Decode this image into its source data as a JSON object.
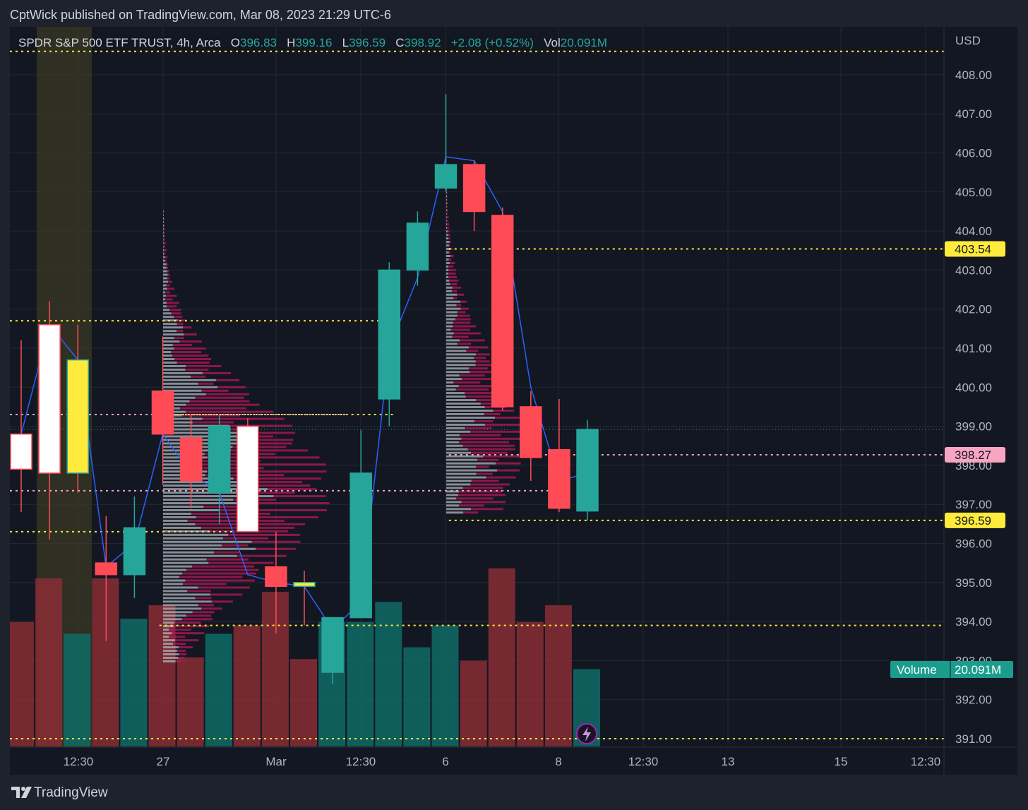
{
  "header": {
    "publisher_line": "CptWick published on TradingView.com, Mar 08, 2023 21:29 UTC-6"
  },
  "legend": {
    "symbol": "SPDR S&P 500 ETF TRUST, 4h, Arca",
    "o_label": "O",
    "o_value": "396.83",
    "h_label": "H",
    "h_value": "399.16",
    "l_label": "L",
    "l_value": "396.59",
    "c_label": "C",
    "c_value": "398.92",
    "change": "+2.08 (+0.52%)",
    "vol_label": "Vol",
    "vol_value": "20.091M"
  },
  "footer": {
    "brand": "TradingView",
    "logo_icon": "tradingview-logo-icon"
  },
  "colors": {
    "bull": "#26a69a",
    "bear": "#ff4b55",
    "level_yellow": "#ffeb3b",
    "level_pink": "#f8a5c2",
    "line_blue": "#2962ff",
    "bg": "#131722"
  },
  "chart_data": {
    "type": "candlestick",
    "currency": "USD",
    "y_ticks": [
      "408.00",
      "407.00",
      "406.00",
      "405.00",
      "404.00",
      "403.00",
      "402.00",
      "401.00",
      "400.00",
      "399.00",
      "398.00",
      "397.00",
      "396.00",
      "395.00",
      "394.00",
      "393.00",
      "392.00",
      "391.00"
    ],
    "ylim": [
      390.8,
      408.9
    ],
    "x_ticks": [
      "12:30",
      "27",
      "Mar",
      "12:30",
      "6",
      "8",
      "12:30",
      "13",
      "15",
      "12:30"
    ],
    "candles": [
      {
        "o": 397.9,
        "h": 401.2,
        "l": 396.8,
        "c": 398.8,
        "color": "white"
      },
      {
        "o": 397.8,
        "h": 402.2,
        "l": 396.1,
        "c": 401.6,
        "color": "white"
      },
      {
        "o": 397.8,
        "h": 401.6,
        "l": 397.3,
        "c": 400.7,
        "color": "yellow"
      },
      {
        "o": 395.2,
        "h": 396.7,
        "l": 393.5,
        "c": 395.5,
        "color": "bear"
      },
      {
        "o": 395.2,
        "h": 397.2,
        "l": 394.6,
        "c": 396.4,
        "color": "bull"
      },
      {
        "o": 399.9,
        "h": 401.3,
        "l": 397.5,
        "c": 398.8,
        "color": "bear"
      },
      {
        "o": 398.7,
        "h": 399.3,
        "l": 396.9,
        "c": 397.6,
        "color": "bear"
      },
      {
        "o": 397.3,
        "h": 399.3,
        "l": 396.5,
        "c": 399.0,
        "color": "bull"
      },
      {
        "o": 399.0,
        "h": 399.2,
        "l": 396.3,
        "c": 396.3,
        "color": "white"
      },
      {
        "o": 395.4,
        "h": 396.3,
        "l": 393.7,
        "c": 394.9,
        "color": "bear"
      },
      {
        "o": 395.0,
        "h": 395.3,
        "l": 393.9,
        "c": 394.9,
        "color": "yellow"
      },
      {
        "o": 392.7,
        "h": 394.1,
        "l": 392.4,
        "c": 394.1,
        "color": "bull"
      },
      {
        "o": 394.1,
        "h": 398.9,
        "l": 394.1,
        "c": 397.8,
        "color": "bull"
      },
      {
        "o": 399.7,
        "h": 403.2,
        "l": 399.0,
        "c": 403.0,
        "color": "bull"
      },
      {
        "o": 403.0,
        "h": 404.5,
        "l": 402.6,
        "c": 404.2,
        "color": "bull"
      },
      {
        "o": 405.1,
        "h": 407.5,
        "l": 405.0,
        "c": 405.7,
        "color": "bull"
      },
      {
        "o": 405.7,
        "h": 405.8,
        "l": 404.0,
        "c": 404.5,
        "color": "bear"
      },
      {
        "o": 404.4,
        "h": 404.6,
        "l": 399.4,
        "c": 399.5,
        "color": "bear"
      },
      {
        "o": 399.5,
        "h": 399.9,
        "l": 397.6,
        "c": 398.2,
        "color": "bear"
      },
      {
        "o": 398.4,
        "h": 399.7,
        "l": 396.8,
        "c": 396.9,
        "color": "bear"
      },
      {
        "o": 396.83,
        "h": 399.16,
        "l": 396.59,
        "c": 398.92,
        "color": "bull"
      }
    ],
    "volume_color": [
      "bear",
      "bear",
      "bull",
      "bear",
      "bull",
      "bear",
      "bear",
      "bull",
      "bear",
      "bear",
      "bear",
      "bull",
      "bull",
      "bull",
      "bull",
      "bull",
      "bear",
      "bear",
      "bear",
      "bear",
      "bull"
    ],
    "volume_rel": [
      0.74,
      1.0,
      0.67,
      1.0,
      0.76,
      0.84,
      0.53,
      0.67,
      0.72,
      0.92,
      0.52,
      0.74,
      0.74,
      0.86,
      0.59,
      0.72,
      0.51,
      1.06,
      0.74,
      0.84,
      0.46
    ],
    "hlines": [
      {
        "price": 408.6,
        "style": "yellow"
      },
      {
        "price": 401.7,
        "style": "yellow",
        "xr": 0.41
      },
      {
        "price": 399.3,
        "style": "pink",
        "xr": 0.36
      },
      {
        "price": 399.3,
        "style": "yellow",
        "x0": 0.16,
        "xr": 0.41
      },
      {
        "price": 403.54,
        "style": "yellow",
        "x0": 0.47,
        "label": "403.54"
      },
      {
        "price": 398.27,
        "style": "pink",
        "x0": 0.47,
        "label": "398.27"
      },
      {
        "price": 397.35,
        "style": "pink",
        "xr": 0.58
      },
      {
        "price": 396.59,
        "style": "yellow",
        "x0": 0.47,
        "label": "396.59"
      },
      {
        "price": 396.3,
        "style": "yellow",
        "xr": 0.24
      },
      {
        "price": 393.9,
        "style": "yellow",
        "x0": 0.16
      },
      {
        "price": 391.0,
        "style": "yellow"
      }
    ],
    "last_price": 398.92,
    "blue_line": [
      398.8,
      401.6,
      400.7,
      395.4,
      396.0,
      398.8,
      397.8,
      397.3,
      395.2,
      395.0,
      394.9,
      393.8,
      394.5,
      401.0,
      402.8,
      405.9,
      405.8,
      404.5,
      400.0,
      397.6,
      397.8
    ],
    "volume_badge": {
      "label": "Volume",
      "value": "20.091M"
    },
    "vp1": {
      "top": 404.5,
      "bottom": 392.9,
      "poc": 397.4
    },
    "vp2": {
      "top": 407.5,
      "bottom": 396.7,
      "poc": 398.6
    }
  }
}
